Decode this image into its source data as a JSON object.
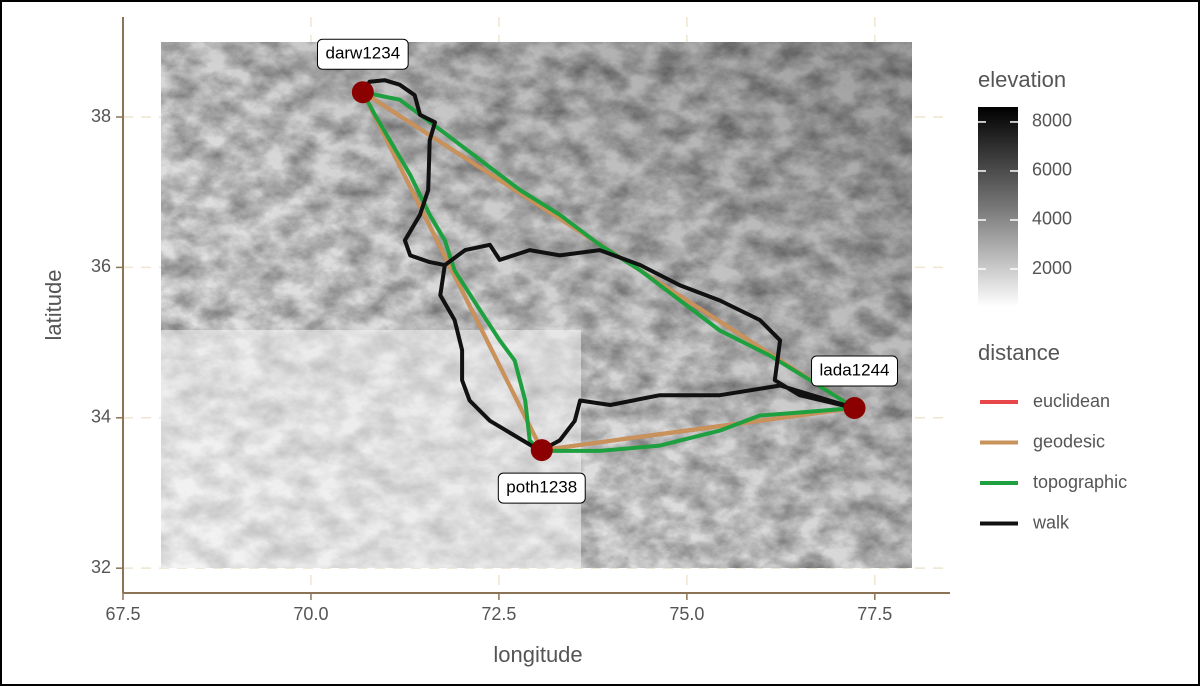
{
  "chart_data": {
    "type": "map",
    "x_label": "longitude",
    "y_label": "latitude",
    "xlim": [
      67.5,
      78.5
    ],
    "xticks": [
      67.5,
      {
        "value": 70,
        "label": "70.0"
      },
      72.5,
      {
        "value": 75,
        "label": "75.0"
      },
      77.5
    ],
    "ylim": [
      31.67,
      39.33
    ],
    "yticks": [
      32,
      34,
      36,
      38
    ],
    "grid": true,
    "points": {
      "labels": [
        "darw1234",
        "lada1244",
        "poth1238"
      ],
      "x": [
        70.69,
        77.23,
        73.07
      ],
      "y": [
        38.33,
        34.13,
        33.57
      ],
      "color": "#8b0000"
    },
    "legend_title": "distance",
    "series": [
      {
        "name": "euclidean",
        "color": "#e8474a",
        "x": [
          70.69,
          77.23,
          73.07,
          70.69
        ],
        "y": [
          38.33,
          34.13,
          33.57,
          38.33
        ]
      },
      {
        "name": "geodesic",
        "color": "#c8935a",
        "x": [
          70.69,
          77.23,
          73.07,
          70.69
        ],
        "y": [
          38.33,
          34.13,
          33.57,
          38.33
        ]
      },
      {
        "name": "topographic",
        "color": "#1fa040",
        "x": [
          70.69,
          70.85,
          71.05,
          71.32,
          71.58,
          71.78,
          71.91,
          72.25,
          72.51,
          72.71,
          72.85,
          72.91,
          73.05,
          73.84,
          74.64,
          75.44,
          75.97,
          76.5,
          77.23,
          76.64,
          76.1,
          75.44,
          74.91,
          74.38,
          73.84,
          73.31,
          72.78,
          72.25,
          71.72,
          71.18,
          70.69
        ],
        "y": [
          38.33,
          38.03,
          37.69,
          37.23,
          36.7,
          36.36,
          35.96,
          35.43,
          35.03,
          34.76,
          34.23,
          33.7,
          33.56,
          33.56,
          33.63,
          33.83,
          34.03,
          34.07,
          34.13,
          34.5,
          34.83,
          35.16,
          35.56,
          35.96,
          36.3,
          36.7,
          37.03,
          37.43,
          37.83,
          38.23,
          38.33
        ]
      },
      {
        "name": "walk",
        "color": "#111111",
        "x": [
          70.69,
          70.78,
          70.98,
          71.18,
          71.38,
          71.45,
          71.65,
          71.58,
          71.56,
          71.45,
          71.25,
          71.32,
          71.58,
          71.78,
          72.05,
          72.38,
          72.51,
          72.91,
          73.31,
          73.84,
          74.38,
          74.91,
          75.44,
          75.97,
          76.24,
          76.17,
          76.5,
          77.23,
          76.24,
          75.44,
          74.64,
          73.98,
          73.58,
          73.51,
          73.31,
          73.05,
          72.38,
          72.11,
          72.01,
          72.01,
          71.91,
          71.72,
          71.78
        ],
        "y": [
          38.33,
          38.47,
          38.49,
          38.43,
          38.29,
          38.03,
          37.93,
          37.69,
          37.03,
          36.7,
          36.36,
          36.16,
          36.07,
          36.03,
          36.23,
          36.3,
          36.1,
          36.23,
          36.16,
          36.23,
          36.03,
          35.76,
          35.56,
          35.3,
          35.03,
          34.5,
          34.3,
          34.13,
          34.43,
          34.3,
          34.3,
          34.17,
          34.23,
          33.96,
          33.7,
          33.56,
          33.96,
          34.23,
          34.5,
          34.9,
          35.3,
          35.63,
          36.03
        ]
      }
    ],
    "colorbar": {
      "title": "elevation",
      "lim": [
        450,
        8610
      ],
      "ticks": [
        2000,
        4000,
        6000,
        8000
      ]
    }
  }
}
